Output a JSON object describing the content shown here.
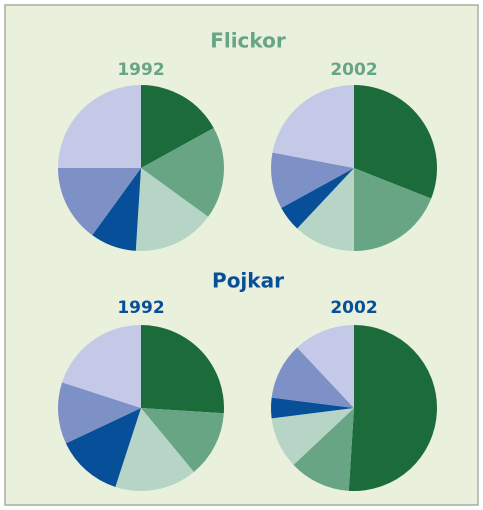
{
  "headings": [
    "Flickor",
    "Pojkar"
  ],
  "chart_data": [
    {
      "type": "pie",
      "title": "1992",
      "categories": [
        null,
        null,
        null,
        null,
        null,
        null
      ],
      "values": [
        17,
        18,
        16,
        9,
        15,
        25
      ],
      "colors": [
        "#1c6b3b",
        "#67a585",
        "#b6d5c6",
        "#084f9a",
        "#7d91c6",
        "#c3c9e6"
      ]
    },
    {
      "type": "pie",
      "title": "2002",
      "categories": [
        null,
        null,
        null,
        null,
        null,
        null
      ],
      "values": [
        31,
        19,
        12,
        5,
        11,
        22
      ],
      "colors": [
        "#1c6b3b",
        "#67a585",
        "#b6d5c6",
        "#084f9a",
        "#7d91c6",
        "#c3c9e6"
      ]
    },
    {
      "type": "pie",
      "title": "1992",
      "categories": [
        null,
        null,
        null,
        null,
        null,
        null
      ],
      "values": [
        26,
        13,
        16,
        13,
        12,
        20
      ],
      "colors": [
        "#1c6b3b",
        "#67a585",
        "#b6d5c6",
        "#084f9a",
        "#7d91c6",
        "#c3c9e6"
      ]
    },
    {
      "type": "pie",
      "title": "2002",
      "categories": [
        null,
        null,
        null,
        null,
        null,
        null
      ],
      "values": [
        51,
        12,
        10,
        4,
        11,
        12
      ],
      "colors": [
        "#1c6b3b",
        "#67a585",
        "#b6d5c6",
        "#084f9a",
        "#7d91c6",
        "#c3c9e6"
      ]
    }
  ]
}
